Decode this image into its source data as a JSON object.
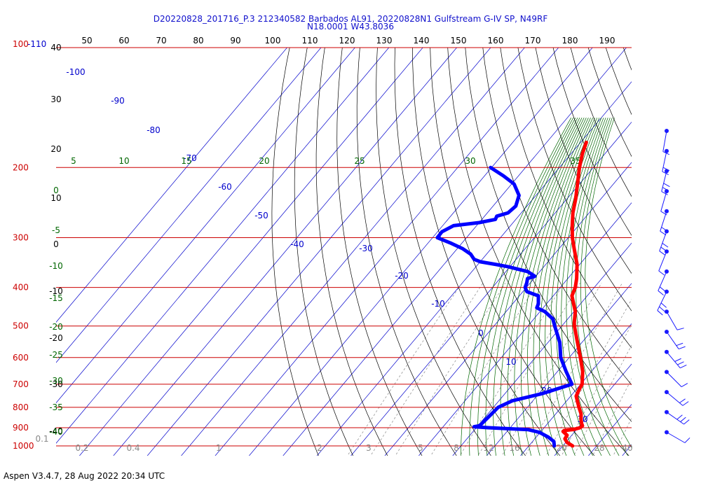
{
  "header": {
    "line1": "D20220828_201716_P.3 212340582 Barbados AL91, 20220828N1 Gulfstream G-IV SP, N49RF",
    "line2": "N18.0001 W43.8036"
  },
  "footer": "Aspen V3.4.7, 28 Aug 2022  20:34 UTC",
  "colors": {
    "isobar": "#cc0000",
    "isotherm": "#0000cc",
    "dry_adiabat": "#000000",
    "moist_adiabat": "#006600",
    "mixing_ratio": "#888888",
    "temperature": "#ff0000",
    "dewpoint": "#0000ff",
    "wind_barb": "#1a1aff"
  },
  "chart_data": {
    "type": "line",
    "subtype": "skew-T log-P diagram",
    "pressure_levels_hpa": [
      {
        "value": 100,
        "label": "100-110"
      },
      {
        "value": 200,
        "label": "200"
      },
      {
        "value": 300,
        "label": "300"
      },
      {
        "value": 400,
        "label": "400"
      },
      {
        "value": 500,
        "label": "500"
      },
      {
        "value": 600,
        "label": "600"
      },
      {
        "value": 700,
        "label": "700"
      },
      {
        "value": 800,
        "label": "800"
      },
      {
        "value": 900,
        "label": "900"
      },
      {
        "value": 1000,
        "label": "1000"
      }
    ],
    "top_axis_labels": [
      "50",
      "60",
      "70",
      "80",
      "90",
      "100",
      "110",
      "120",
      "130",
      "140",
      "150",
      "160",
      "170",
      "180",
      "190"
    ],
    "left_height_labels": [
      "40",
      "30",
      "20",
      "10",
      "0",
      "-10",
      "-20",
      "-30",
      "-40"
    ],
    "isotherm_labels": [
      "-100",
      "-90",
      "-80",
      "-70",
      "-60",
      "-50",
      "-40",
      "-30",
      "-20",
      "-10",
      "0",
      "10",
      "20",
      "30"
    ],
    "moist_adiabat_labels": [
      "5",
      "10",
      "15",
      "20",
      "25",
      "30",
      "35"
    ],
    "left_green_labels": [
      "0",
      "-5",
      "-10",
      "-15",
      "-20",
      "-25",
      "-30",
      "-35",
      "-40"
    ],
    "mixing_ratio_labels": [
      "0.1",
      "0.2",
      "0.4",
      "1",
      "2",
      "3",
      "5",
      "8",
      "12",
      "16",
      "20",
      "28",
      "40"
    ],
    "series": [
      {
        "name": "Temperature",
        "points": [
          {
            "p": 173,
            "t": -48.3
          },
          {
            "p": 185,
            "t": -46.6
          },
          {
            "p": 200,
            "t": -44.1
          },
          {
            "p": 220,
            "t": -40.6
          },
          {
            "p": 240,
            "t": -37.4
          },
          {
            "p": 260,
            "t": -34.8
          },
          {
            "p": 280,
            "t": -31.8
          },
          {
            "p": 300,
            "t": -28.8
          },
          {
            "p": 320,
            "t": -25.5
          },
          {
            "p": 350,
            "t": -20.8
          },
          {
            "p": 380,
            "t": -17.4
          },
          {
            "p": 400,
            "t": -15.6
          },
          {
            "p": 420,
            "t": -14.5
          },
          {
            "p": 440,
            "t": -12.0
          },
          {
            "p": 460,
            "t": -9.6
          },
          {
            "p": 490,
            "t": -7.2
          },
          {
            "p": 500,
            "t": -6.3
          },
          {
            "p": 550,
            "t": -1.3
          },
          {
            "p": 600,
            "t": 3.3
          },
          {
            "p": 650,
            "t": 7.4
          },
          {
            "p": 700,
            "t": 10.4
          },
          {
            "p": 720,
            "t": 10.8
          },
          {
            "p": 750,
            "t": 11.6
          },
          {
            "p": 800,
            "t": 15.2
          },
          {
            "p": 830,
            "t": 17.4
          },
          {
            "p": 860,
            "t": 18.9
          },
          {
            "p": 880,
            "t": 20.1
          },
          {
            "p": 890,
            "t": 20.8
          },
          {
            "p": 900,
            "t": 20.6
          },
          {
            "p": 910,
            "t": 19.0
          },
          {
            "p": 915,
            "t": 16.6
          },
          {
            "p": 920,
            "t": 16.5
          },
          {
            "p": 940,
            "t": 18.6
          },
          {
            "p": 960,
            "t": 18.9
          },
          {
            "p": 980,
            "t": 20.4
          },
          {
            "p": 1000,
            "t": 22.9
          }
        ]
      },
      {
        "name": "Dewpoint",
        "points": [
          {
            "p": 200,
            "t": -70.3
          },
          {
            "p": 210,
            "t": -64.4
          },
          {
            "p": 220,
            "t": -59.3
          },
          {
            "p": 235,
            "t": -55.0
          },
          {
            "p": 250,
            "t": -53.3
          },
          {
            "p": 260,
            "t": -53.9
          },
          {
            "p": 265,
            "t": -56.4
          },
          {
            "p": 270,
            "t": -56.0
          },
          {
            "p": 275,
            "t": -60.0
          },
          {
            "p": 280,
            "t": -66.8
          },
          {
            "p": 290,
            "t": -68.7
          },
          {
            "p": 300,
            "t": -68.6
          },
          {
            "p": 310,
            "t": -63.1
          },
          {
            "p": 320,
            "t": -58.3
          },
          {
            "p": 330,
            "t": -54.7
          },
          {
            "p": 340,
            "t": -52.4
          },
          {
            "p": 345,
            "t": -49.9
          },
          {
            "p": 350,
            "t": -44.9
          },
          {
            "p": 355,
            "t": -40.5
          },
          {
            "p": 365,
            "t": -33.6
          },
          {
            "p": 375,
            "t": -30.3
          },
          {
            "p": 380,
            "t": -31.9
          },
          {
            "p": 390,
            "t": -31.0
          },
          {
            "p": 400,
            "t": -30.4
          },
          {
            "p": 410,
            "t": -28.8
          },
          {
            "p": 420,
            "t": -24.4
          },
          {
            "p": 440,
            "t": -22.4
          },
          {
            "p": 450,
            "t": -21.9
          },
          {
            "p": 460,
            "t": -18.6
          },
          {
            "p": 480,
            "t": -14.4
          },
          {
            "p": 500,
            "t": -12.1
          },
          {
            "p": 550,
            "t": -6.5
          },
          {
            "p": 600,
            "t": -2.5
          },
          {
            "p": 650,
            "t": 2.5
          },
          {
            "p": 700,
            "t": 7.4
          },
          {
            "p": 740,
            "t": 0.8
          },
          {
            "p": 770,
            "t": -6.0
          },
          {
            "p": 800,
            "t": -8.6
          },
          {
            "p": 850,
            "t": -9.1
          },
          {
            "p": 890,
            "t": -9.5
          },
          {
            "p": 895,
            "t": -10.9
          },
          {
            "p": 900,
            "t": -6.5
          },
          {
            "p": 910,
            "t": 5.7
          },
          {
            "p": 925,
            "t": 9.8
          },
          {
            "p": 950,
            "t": 13.5
          },
          {
            "p": 975,
            "t": 16.3
          },
          {
            "p": 1000,
            "t": 17.5
          }
        ]
      }
    ],
    "wind_barbs_count": 16
  }
}
